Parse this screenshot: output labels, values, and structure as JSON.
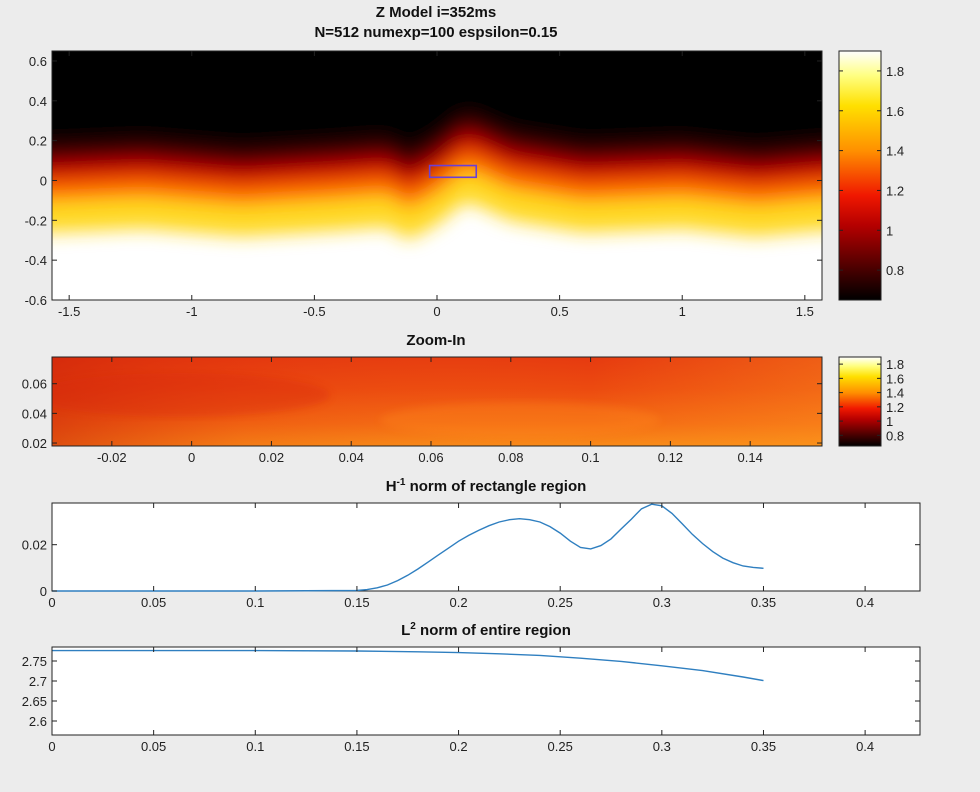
{
  "figure": {
    "title_line1": "Z Model i=352ms",
    "title_line2": "N=512 numexp=100 espsilon=0.15"
  },
  "chart_data": [
    {
      "type": "heatmap",
      "title": "",
      "xlim": [
        -1.57,
        1.57
      ],
      "ylim": [
        -0.6,
        0.65
      ],
      "xticks": [
        -1.5,
        -1,
        -0.5,
        0,
        0.5,
        1,
        1.5
      ],
      "xtick_labels": [
        "-1.5",
        "-1",
        "-0.5",
        "0",
        "0.5",
        "1",
        "1.5"
      ],
      "yticks": [
        -0.6,
        -0.4,
        -0.2,
        0,
        0.2,
        0.4,
        0.6
      ],
      "ytick_labels": [
        "-0.6",
        "-0.4",
        "-0.2",
        "0",
        "0.2",
        "0.4",
        "0.6"
      ],
      "colormap": "hot",
      "colorbar": {
        "range": [
          0.65,
          1.9
        ],
        "ticks": [
          0.8,
          1,
          1.2,
          1.4,
          1.6,
          1.8
        ],
        "tick_labels": [
          "0.8",
          "1",
          "1.2",
          "1.4",
          "1.6",
          "1.8"
        ]
      },
      "interface_y_at_x": [
        [
          -1.57,
          0.02
        ],
        [
          -1.2,
          0.04
        ],
        [
          -0.8,
          0.0
        ],
        [
          -0.4,
          0.03
        ],
        [
          -0.2,
          0.05
        ],
        [
          -0.12,
          -0.02
        ],
        [
          0.0,
          0.06
        ],
        [
          0.12,
          0.18
        ],
        [
          0.3,
          0.08
        ],
        [
          0.6,
          0.02
        ],
        [
          1.0,
          0.04
        ],
        [
          1.3,
          0.0
        ],
        [
          1.57,
          0.03
        ]
      ],
      "zoom_rectangle": {
        "x": [
          -0.03,
          0.16
        ],
        "y": [
          0.016,
          0.075
        ],
        "color": "#6a3fd8"
      }
    },
    {
      "type": "heatmap",
      "title": "Zoom-In",
      "xlim": [
        -0.035,
        0.158
      ],
      "ylim": [
        0.018,
        0.078
      ],
      "xticks": [
        -0.02,
        0,
        0.02,
        0.04,
        0.06,
        0.08,
        0.1,
        0.12,
        0.14
      ],
      "xtick_labels": [
        "-0.02",
        "0",
        "0.02",
        "0.04",
        "0.06",
        "0.08",
        "0.1",
        "0.12",
        "0.14"
      ],
      "yticks": [
        0.02,
        0.04,
        0.06
      ],
      "ytick_labels": [
        "0.02",
        "0.04",
        "0.06"
      ],
      "colormap": "hot",
      "colorbar": {
        "range": [
          0.65,
          1.9
        ],
        "ticks": [
          0.8,
          1,
          1.2,
          1.4,
          1.6,
          1.8
        ],
        "tick_labels": [
          "0.8",
          "1",
          "1.2",
          "1.4",
          "1.6",
          "1.8"
        ]
      }
    },
    {
      "type": "line",
      "title_main": "H",
      "title_sup": "-1",
      "title_rest": " norm of rectangle region",
      "xlim": [
        0,
        0.427
      ],
      "ylim": [
        0,
        0.038
      ],
      "xticks": [
        0,
        0.05,
        0.1,
        0.15,
        0.2,
        0.25,
        0.3,
        0.35,
        0.4
      ],
      "xtick_labels": [
        "0",
        "0.05",
        "0.1",
        "0.15",
        "0.2",
        "0.25",
        "0.3",
        "0.35",
        "0.4"
      ],
      "yticks": [
        0,
        0.02
      ],
      "ytick_labels": [
        "0",
        "0.02"
      ],
      "series": [
        {
          "color": "#2f7fc0",
          "x": [
            0,
            0.05,
            0.1,
            0.15,
            0.155,
            0.16,
            0.165,
            0.17,
            0.175,
            0.18,
            0.185,
            0.19,
            0.195,
            0.2,
            0.205,
            0.21,
            0.215,
            0.22,
            0.225,
            0.23,
            0.235,
            0.24,
            0.245,
            0.25,
            0.255,
            0.26,
            0.265,
            0.27,
            0.275,
            0.28,
            0.285,
            0.29,
            0.295,
            0.3,
            0.305,
            0.31,
            0.315,
            0.32,
            0.325,
            0.33,
            0.335,
            0.34,
            0.345,
            0.35
          ],
          "y": [
            0,
            0,
            0,
            0.0002,
            0.0006,
            0.0014,
            0.0026,
            0.0045,
            0.0068,
            0.0095,
            0.0125,
            0.0155,
            0.0185,
            0.0215,
            0.024,
            0.0262,
            0.0282,
            0.0298,
            0.0308,
            0.0312,
            0.0308,
            0.0298,
            0.0278,
            0.025,
            0.0215,
            0.0188,
            0.0182,
            0.0196,
            0.0225,
            0.0268,
            0.031,
            0.0355,
            0.0375,
            0.0368,
            0.0335,
            0.029,
            0.0245,
            0.0205,
            0.017,
            0.0142,
            0.0122,
            0.0108,
            0.0102,
            0.0098
          ]
        }
      ]
    },
    {
      "type": "line",
      "title_main": "L",
      "title_sup": "2",
      "title_rest": " norm of entire region",
      "xlim": [
        0,
        0.427
      ],
      "ylim": [
        2.565,
        2.785
      ],
      "xticks": [
        0,
        0.05,
        0.1,
        0.15,
        0.2,
        0.25,
        0.3,
        0.35,
        0.4
      ],
      "xtick_labels": [
        "0",
        "0.05",
        "0.1",
        "0.15",
        "0.2",
        "0.25",
        "0.3",
        "0.35",
        "0.4"
      ],
      "yticks": [
        2.6,
        2.65,
        2.7,
        2.75
      ],
      "ytick_labels": [
        "2.6",
        "2.65",
        "2.7",
        "2.75"
      ],
      "series": [
        {
          "color": "#2f7fc0",
          "x": [
            0,
            0.05,
            0.1,
            0.15,
            0.18,
            0.2,
            0.22,
            0.24,
            0.26,
            0.28,
            0.3,
            0.32,
            0.34,
            0.35
          ],
          "y": [
            2.776,
            2.776,
            2.776,
            2.775,
            2.773,
            2.771,
            2.768,
            2.764,
            2.757,
            2.749,
            2.738,
            2.726,
            2.71,
            2.701
          ]
        }
      ]
    }
  ]
}
